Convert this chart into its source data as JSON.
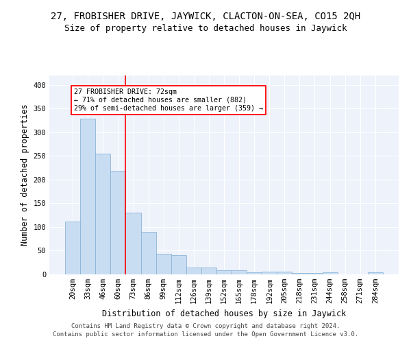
{
  "title": "27, FROBISHER DRIVE, JAYWICK, CLACTON-ON-SEA, CO15 2QH",
  "subtitle": "Size of property relative to detached houses in Jaywick",
  "xlabel": "Distribution of detached houses by size in Jaywick",
  "ylabel": "Number of detached properties",
  "footer_line1": "Contains HM Land Registry data © Crown copyright and database right 2024.",
  "footer_line2": "Contains public sector information licensed under the Open Government Licence v3.0.",
  "categories": [
    "20sqm",
    "33sqm",
    "46sqm",
    "60sqm",
    "73sqm",
    "86sqm",
    "99sqm",
    "112sqm",
    "126sqm",
    "139sqm",
    "152sqm",
    "165sqm",
    "178sqm",
    "192sqm",
    "205sqm",
    "218sqm",
    "231sqm",
    "244sqm",
    "258sqm",
    "271sqm",
    "284sqm"
  ],
  "values": [
    111,
    329,
    255,
    218,
    130,
    90,
    44,
    41,
    15,
    15,
    8,
    8,
    5,
    6,
    6,
    3,
    3,
    4,
    0,
    0,
    4
  ],
  "bar_color": "#c9ddf2",
  "bar_edge_color": "#8ab4d8",
  "bar_linewidth": 0.6,
  "subject_line_color": "red",
  "annotation_text": "27 FROBISHER DRIVE: 72sqm\n← 71% of detached houses are smaller (882)\n29% of semi-detached houses are larger (359) →",
  "annotation_box_color": "white",
  "annotation_box_edge_color": "red",
  "ylim": [
    0,
    420
  ],
  "yticks": [
    0,
    50,
    100,
    150,
    200,
    250,
    300,
    350,
    400
  ],
  "background_color": "#eef2fb",
  "grid_color": "white",
  "title_fontsize": 10,
  "subtitle_fontsize": 9,
  "axis_label_fontsize": 8.5,
  "tick_fontsize": 7.5,
  "footer_fontsize": 6.5
}
